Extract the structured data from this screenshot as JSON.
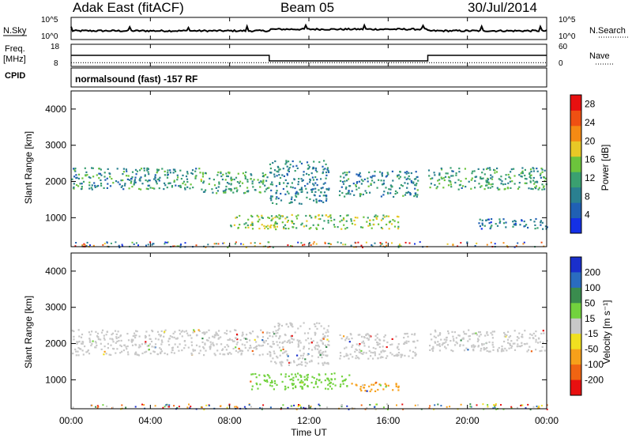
{
  "header": {
    "station": "Adak East (fitACF)",
    "beam": "Beam 05",
    "date": "30/Jul/2014"
  },
  "sky_panel": {
    "left_label": "N.Sky",
    "right_label": "N.Search",
    "yticks_left": [
      "10^5",
      "10^0"
    ],
    "yticks_right": [
      "10^5",
      "10^0"
    ]
  },
  "freq_panel": {
    "left_label_1": "Freq.",
    "left_label_2": "[MHz]",
    "yticks_left": [
      "18",
      "8"
    ],
    "yticks_right": [
      "60",
      "0"
    ],
    "right_label": "Nave",
    "freq_levels": [
      {
        "x_start": 0,
        "x_end": 10,
        "value": 13
      },
      {
        "x_start": 10,
        "x_end": 18,
        "value": 10.5
      },
      {
        "x_start": 18,
        "x_end": 24,
        "value": 13
      }
    ],
    "nave_level": 10
  },
  "cpid_panel": {
    "left_label": "CPID",
    "text": "normalsound (fast) -157 RF"
  },
  "x_axis": {
    "label": "Time UT",
    "ticks": [
      "00:00",
      "04:00",
      "08:00",
      "12:00",
      "16:00",
      "20:00",
      "00:00"
    ],
    "range": [
      0,
      24
    ]
  },
  "colors": {
    "power_scale": [
      "#1430e6",
      "#2060b4",
      "#2a8090",
      "#3aa070",
      "#6cc43c",
      "#e8c826",
      "#f58a14",
      "#ef5012",
      "#e81010"
    ],
    "velocity_scale": [
      "#1a2fcc",
      "#2a6cc0",
      "#3a8c4e",
      "#72d23e",
      "#c8c8c8",
      "#f0e020",
      "#f7a01a",
      "#f06412",
      "#e81010"
    ]
  },
  "chart_data": [
    {
      "type": "heatmap",
      "title": "Power",
      "ylabel": "Slant Range [km]",
      "xlabel": "",
      "ylim": [
        200,
        4500
      ],
      "yticks": [
        "1000",
        "2000",
        "3000",
        "4000"
      ],
      "colorbar": {
        "label": "Power [dB]",
        "ticks": [
          "4",
          "8",
          "12",
          "16",
          "20",
          "24",
          "28"
        ],
        "range": [
          0,
          30
        ]
      },
      "echo_regions": [
        {
          "t_start": 0.0,
          "t_end": 6.5,
          "r_start": 1800,
          "r_end": 2400,
          "value": 9
        },
        {
          "t_start": 6.5,
          "t_end": 10.0,
          "r_start": 1700,
          "r_end": 2300,
          "value": 11
        },
        {
          "t_start": 10.0,
          "t_end": 13.0,
          "r_start": 1400,
          "r_end": 2600,
          "value": 7
        },
        {
          "t_start": 13.5,
          "t_end": 17.5,
          "r_start": 1600,
          "r_end": 2300,
          "value": 8
        },
        {
          "t_start": 18.0,
          "t_end": 24.0,
          "r_start": 1800,
          "r_end": 2400,
          "value": 10
        },
        {
          "t_start": 8.0,
          "t_end": 16.5,
          "r_start": 700,
          "r_end": 1100,
          "value": 14
        },
        {
          "t_start": 20.5,
          "t_end": 24.0,
          "r_start": 700,
          "r_end": 1000,
          "value": 6
        }
      ]
    },
    {
      "type": "heatmap",
      "title": "Velocity",
      "ylabel": "Slant Range [km]",
      "xlabel": "Time UT",
      "ylim": [
        200,
        4500
      ],
      "yticks": [
        "1000",
        "2000",
        "3000",
        "4000"
      ],
      "colorbar": {
        "label": "Velocity [m s⁻¹]",
        "ticks": [
          "200",
          "100",
          "50",
          "15",
          "-15",
          "-50",
          "-100",
          "-200"
        ]
      },
      "echo_regions": [
        {
          "t_start": 0.0,
          "t_end": 10.0,
          "r_start": 1700,
          "r_end": 2400,
          "value": 0
        },
        {
          "t_start": 10.0,
          "t_end": 13.0,
          "r_start": 1400,
          "r_end": 2600,
          "value": -20
        },
        {
          "t_start": 13.5,
          "t_end": 17.5,
          "r_start": 1600,
          "r_end": 2300,
          "value": 10
        },
        {
          "t_start": 18.0,
          "t_end": 24.0,
          "r_start": 1800,
          "r_end": 2400,
          "value": 0
        },
        {
          "t_start": 9.0,
          "t_end": 14.0,
          "r_start": 750,
          "r_end": 1200,
          "value": 40
        },
        {
          "t_start": 14.0,
          "t_end": 16.5,
          "r_start": 700,
          "r_end": 950,
          "value": -40
        }
      ]
    }
  ]
}
